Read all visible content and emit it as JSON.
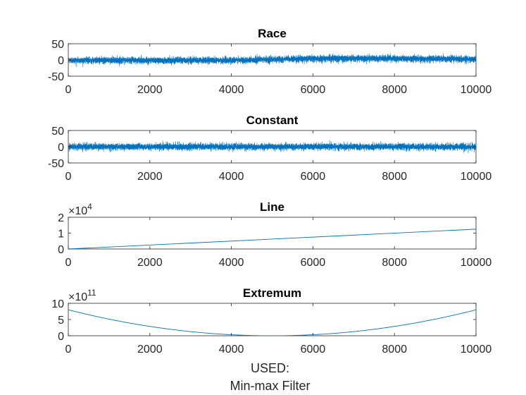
{
  "figure": {
    "footer_line1": "USED:",
    "footer_line2": "Min-max Filter"
  },
  "colors": {
    "series": "#0072BD",
    "axis": "#262626",
    "background": "#ffffff"
  },
  "chart_data": [
    {
      "type": "line",
      "title": "Race",
      "xlim": [
        0,
        10000
      ],
      "ylim": [
        -50,
        50
      ],
      "xticks": [
        0,
        2000,
        4000,
        6000,
        8000,
        10000
      ],
      "yticks": [
        -50,
        0,
        50
      ],
      "exponent": null,
      "series": [
        {
          "kind": "noise",
          "n": 10000,
          "trend": [
            [
              0,
              -1
            ],
            [
              4000,
              -1
            ],
            [
              6500,
              5
            ],
            [
              10000,
              3
            ]
          ],
          "sigma": 5
        }
      ]
    },
    {
      "type": "line",
      "title": "Constant",
      "xlim": [
        0,
        10000
      ],
      "ylim": [
        -50,
        50
      ],
      "xticks": [
        0,
        2000,
        4000,
        6000,
        8000,
        10000
      ],
      "yticks": [
        -50,
        0,
        50
      ],
      "exponent": null,
      "series": [
        {
          "kind": "noise",
          "n": 10000,
          "trend": [
            [
              0,
              0
            ],
            [
              10000,
              0
            ]
          ],
          "sigma": 5
        }
      ]
    },
    {
      "type": "line",
      "title": "Line",
      "xlim": [
        0,
        10000
      ],
      "ylim": [
        0,
        2
      ],
      "xticks": [
        0,
        2000,
        4000,
        6000,
        8000,
        10000
      ],
      "yticks": [
        0,
        1,
        2
      ],
      "exponent": "4",
      "series": [
        {
          "kind": "points",
          "x": [
            0,
            10000
          ],
          "y": [
            0,
            1.25
          ]
        }
      ]
    },
    {
      "type": "line",
      "title": "Extremum",
      "xlim": [
        0,
        10000
      ],
      "ylim": [
        0,
        10
      ],
      "xticks": [
        0,
        2000,
        4000,
        6000,
        8000,
        10000
      ],
      "yticks": [
        0,
        5,
        10
      ],
      "exponent": "11",
      "series": [
        {
          "kind": "parabola",
          "n": 200,
          "x0": 5000,
          "y0": 0,
          "yEnd": 8
        }
      ]
    }
  ]
}
